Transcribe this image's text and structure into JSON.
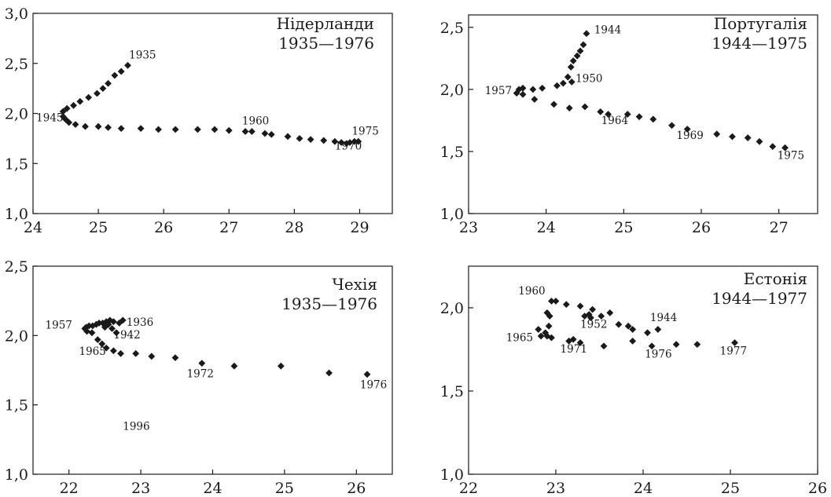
{
  "chart_data": [
    {
      "type": "scatter",
      "title": "Нідерланди",
      "subtitle": "1935—1976",
      "xlim": [
        24,
        29.5
      ],
      "ylim": [
        1.0,
        3.0
      ],
      "x_ticks": [
        "24",
        "25",
        "26",
        "27",
        "28",
        "29"
      ],
      "y_ticks": [
        "1,0",
        "1,5",
        "2,0",
        "2,5",
        "3,0"
      ],
      "points": [
        {
          "x": 25.45,
          "y": 2.48
        },
        {
          "x": 25.35,
          "y": 2.42
        },
        {
          "x": 25.25,
          "y": 2.38
        },
        {
          "x": 25.15,
          "y": 2.3
        },
        {
          "x": 25.07,
          "y": 2.25
        },
        {
          "x": 24.98,
          "y": 2.2
        },
        {
          "x": 24.85,
          "y": 2.16
        },
        {
          "x": 24.72,
          "y": 2.12
        },
        {
          "x": 24.62,
          "y": 2.08
        },
        {
          "x": 24.52,
          "y": 2.05
        },
        {
          "x": 24.46,
          "y": 2.02
        },
        {
          "x": 24.46,
          "y": 1.97
        },
        {
          "x": 24.5,
          "y": 1.94
        },
        {
          "x": 24.55,
          "y": 1.91
        },
        {
          "x": 24.65,
          "y": 1.89
        },
        {
          "x": 24.8,
          "y": 1.87
        },
        {
          "x": 25.0,
          "y": 1.87
        },
        {
          "x": 25.15,
          "y": 1.86
        },
        {
          "x": 25.35,
          "y": 1.85
        },
        {
          "x": 25.65,
          "y": 1.85
        },
        {
          "x": 25.92,
          "y": 1.84
        },
        {
          "x": 26.18,
          "y": 1.84
        },
        {
          "x": 26.52,
          "y": 1.84
        },
        {
          "x": 26.78,
          "y": 1.84
        },
        {
          "x": 27.0,
          "y": 1.83
        },
        {
          "x": 27.25,
          "y": 1.82
        },
        {
          "x": 27.35,
          "y": 1.82
        },
        {
          "x": 27.55,
          "y": 1.8
        },
        {
          "x": 27.65,
          "y": 1.79
        },
        {
          "x": 27.9,
          "y": 1.77
        },
        {
          "x": 28.08,
          "y": 1.75
        },
        {
          "x": 28.25,
          "y": 1.74
        },
        {
          "x": 28.45,
          "y": 1.73
        },
        {
          "x": 28.62,
          "y": 1.72
        },
        {
          "x": 28.72,
          "y": 1.71
        },
        {
          "x": 28.8,
          "y": 1.7
        },
        {
          "x": 28.85,
          "y": 1.71
        },
        {
          "x": 28.92,
          "y": 1.72
        },
        {
          "x": 28.98,
          "y": 1.72
        }
      ],
      "annotations": [
        {
          "text": "1935",
          "x": 25.47,
          "y": 2.55
        },
        {
          "text": "1945",
          "x": 24.05,
          "y": 1.92
        },
        {
          "text": "1960",
          "x": 27.2,
          "y": 1.89
        },
        {
          "text": "1975",
          "x": 28.88,
          "y": 1.79
        },
        {
          "text": "1970",
          "x": 28.62,
          "y": 1.64
        }
      ]
    },
    {
      "type": "scatter",
      "title": "Португалія",
      "subtitle": "1944—1975",
      "xlim": [
        23,
        27.5
      ],
      "ylim": [
        1.0,
        2.6
      ],
      "x_ticks": [
        "23",
        "24",
        "25",
        "26",
        "27"
      ],
      "y_ticks": [
        "1,0",
        "1,5",
        "2,0",
        "2,5"
      ],
      "points": [
        {
          "x": 24.52,
          "y": 2.45
        },
        {
          "x": 24.48,
          "y": 2.36
        },
        {
          "x": 24.44,
          "y": 2.31
        },
        {
          "x": 24.4,
          "y": 2.27
        },
        {
          "x": 24.35,
          "y": 2.23
        },
        {
          "x": 24.32,
          "y": 2.18
        },
        {
          "x": 24.28,
          "y": 2.1
        },
        {
          "x": 24.33,
          "y": 2.06
        },
        {
          "x": 24.22,
          "y": 2.05
        },
        {
          "x": 24.14,
          "y": 2.03
        },
        {
          "x": 23.95,
          "y": 2.01
        },
        {
          "x": 23.83,
          "y": 2.0
        },
        {
          "x": 23.7,
          "y": 2.01
        },
        {
          "x": 23.65,
          "y": 2.0
        },
        {
          "x": 23.62,
          "y": 1.97
        },
        {
          "x": 23.7,
          "y": 1.96
        },
        {
          "x": 23.85,
          "y": 1.92
        },
        {
          "x": 24.1,
          "y": 1.88
        },
        {
          "x": 24.3,
          "y": 1.85
        },
        {
          "x": 24.5,
          "y": 1.86
        },
        {
          "x": 24.7,
          "y": 1.82
        },
        {
          "x": 24.8,
          "y": 1.8
        },
        {
          "x": 25.05,
          "y": 1.8
        },
        {
          "x": 25.2,
          "y": 1.78
        },
        {
          "x": 25.38,
          "y": 1.76
        },
        {
          "x": 25.62,
          "y": 1.71
        },
        {
          "x": 25.82,
          "y": 1.68
        },
        {
          "x": 26.2,
          "y": 1.64
        },
        {
          "x": 26.4,
          "y": 1.62
        },
        {
          "x": 26.6,
          "y": 1.61
        },
        {
          "x": 26.75,
          "y": 1.58
        },
        {
          "x": 26.92,
          "y": 1.54
        },
        {
          "x": 27.08,
          "y": 1.53
        }
      ],
      "annotations": [
        {
          "text": "1944",
          "x": 24.62,
          "y": 2.45
        },
        {
          "text": "1950",
          "x": 24.38,
          "y": 2.06
        },
        {
          "text": "1957",
          "x": 23.21,
          "y": 1.96
        },
        {
          "text": "1964",
          "x": 24.71,
          "y": 1.72
        },
        {
          "text": "1969",
          "x": 25.68,
          "y": 1.6
        },
        {
          "text": "1975",
          "x": 26.98,
          "y": 1.44
        }
      ]
    },
    {
      "type": "scatter",
      "title": "Чехія",
      "subtitle": "1935—1976",
      "xlim": [
        21.5,
        26.5
      ],
      "ylim": [
        1.0,
        2.5
      ],
      "x_ticks": [
        "22",
        "23",
        "24",
        "25",
        "26"
      ],
      "y_ticks": [
        "1,0",
        "1,5",
        "2,0",
        "2,5"
      ],
      "points": [
        {
          "x": 22.75,
          "y": 2.11
        },
        {
          "x": 22.7,
          "y": 2.09
        },
        {
          "x": 22.62,
          "y": 2.1
        },
        {
          "x": 22.57,
          "y": 2.11
        },
        {
          "x": 22.52,
          "y": 2.1
        },
        {
          "x": 22.47,
          "y": 2.09
        },
        {
          "x": 22.42,
          "y": 2.09
        },
        {
          "x": 22.38,
          "y": 2.08
        },
        {
          "x": 22.33,
          "y": 2.07
        },
        {
          "x": 22.28,
          "y": 2.07
        },
        {
          "x": 22.24,
          "y": 2.06
        },
        {
          "x": 22.22,
          "y": 2.05
        },
        {
          "x": 22.25,
          "y": 2.03
        },
        {
          "x": 22.32,
          "y": 2.02
        },
        {
          "x": 22.4,
          "y": 1.97
        },
        {
          "x": 22.46,
          "y": 1.94
        },
        {
          "x": 22.52,
          "y": 1.91
        },
        {
          "x": 22.62,
          "y": 1.89
        },
        {
          "x": 22.72,
          "y": 1.87
        },
        {
          "x": 22.55,
          "y": 2.08
        },
        {
          "x": 22.6,
          "y": 2.05
        },
        {
          "x": 22.66,
          "y": 2.02
        },
        {
          "x": 22.5,
          "y": 2.06
        },
        {
          "x": 22.93,
          "y": 1.87
        },
        {
          "x": 23.15,
          "y": 1.85
        },
        {
          "x": 23.48,
          "y": 1.84
        },
        {
          "x": 23.85,
          "y": 1.8
        },
        {
          "x": 24.3,
          "y": 1.78
        },
        {
          "x": 24.95,
          "y": 1.78
        },
        {
          "x": 25.62,
          "y": 1.73
        },
        {
          "x": 26.15,
          "y": 1.72
        }
      ],
      "annotations": [
        {
          "text": "1957",
          "x": 21.67,
          "y": 2.05
        },
        {
          "text": "1936",
          "x": 22.8,
          "y": 2.07
        },
        {
          "text": "1942",
          "x": 22.62,
          "y": 1.98
        },
        {
          "text": "1965",
          "x": 22.14,
          "y": 1.86
        },
        {
          "text": "1972",
          "x": 23.64,
          "y": 1.7
        },
        {
          "text": "1976",
          "x": 26.05,
          "y": 1.62
        },
        {
          "text": "1996",
          "x": 22.75,
          "y": 1.32
        }
      ]
    },
    {
      "type": "scatter",
      "title": "Естонія",
      "subtitle": "1944—1977",
      "xlim": [
        22,
        26
      ],
      "ylim": [
        1.0,
        2.25
      ],
      "x_ticks": [
        "22",
        "23",
        "24",
        "25",
        "26"
      ],
      "y_ticks": [
        "1,0",
        "1,5",
        "2,0"
      ],
      "points": [
        {
          "x": 24.17,
          "y": 1.87
        },
        {
          "x": 24.05,
          "y": 1.85
        },
        {
          "x": 23.88,
          "y": 1.87
        },
        {
          "x": 23.83,
          "y": 1.89
        },
        {
          "x": 23.72,
          "y": 1.9
        },
        {
          "x": 23.62,
          "y": 1.97
        },
        {
          "x": 23.52,
          "y": 1.95
        },
        {
          "x": 23.42,
          "y": 1.99
        },
        {
          "x": 23.38,
          "y": 1.96
        },
        {
          "x": 23.33,
          "y": 1.95
        },
        {
          "x": 23.28,
          "y": 2.01
        },
        {
          "x": 23.12,
          "y": 2.02
        },
        {
          "x": 23.0,
          "y": 2.04
        },
        {
          "x": 22.95,
          "y": 2.04
        },
        {
          "x": 22.9,
          "y": 1.97
        },
        {
          "x": 22.93,
          "y": 1.95
        },
        {
          "x": 22.92,
          "y": 1.89
        },
        {
          "x": 22.88,
          "y": 1.85
        },
        {
          "x": 22.8,
          "y": 1.87
        },
        {
          "x": 22.83,
          "y": 1.83
        },
        {
          "x": 22.9,
          "y": 1.83
        },
        {
          "x": 22.95,
          "y": 1.82
        },
        {
          "x": 23.15,
          "y": 1.8
        },
        {
          "x": 23.2,
          "y": 1.81
        },
        {
          "x": 23.28,
          "y": 1.79
        },
        {
          "x": 23.4,
          "y": 1.94
        },
        {
          "x": 23.55,
          "y": 1.77
        },
        {
          "x": 23.88,
          "y": 1.8
        },
        {
          "x": 24.1,
          "y": 1.77
        },
        {
          "x": 24.38,
          "y": 1.78
        },
        {
          "x": 24.62,
          "y": 1.78
        },
        {
          "x": 25.05,
          "y": 1.79
        }
      ],
      "annotations": [
        {
          "text": "1960",
          "x": 22.57,
          "y": 2.08
        },
        {
          "text": "1944",
          "x": 24.08,
          "y": 1.92
        },
        {
          "text": "1952",
          "x": 23.28,
          "y": 1.88
        },
        {
          "text": "1965",
          "x": 22.43,
          "y": 1.8
        },
        {
          "text": "1971",
          "x": 23.05,
          "y": 1.73
        },
        {
          "text": "1976",
          "x": 24.02,
          "y": 1.7
        },
        {
          "text": "1977",
          "x": 24.88,
          "y": 1.72
        }
      ]
    }
  ]
}
